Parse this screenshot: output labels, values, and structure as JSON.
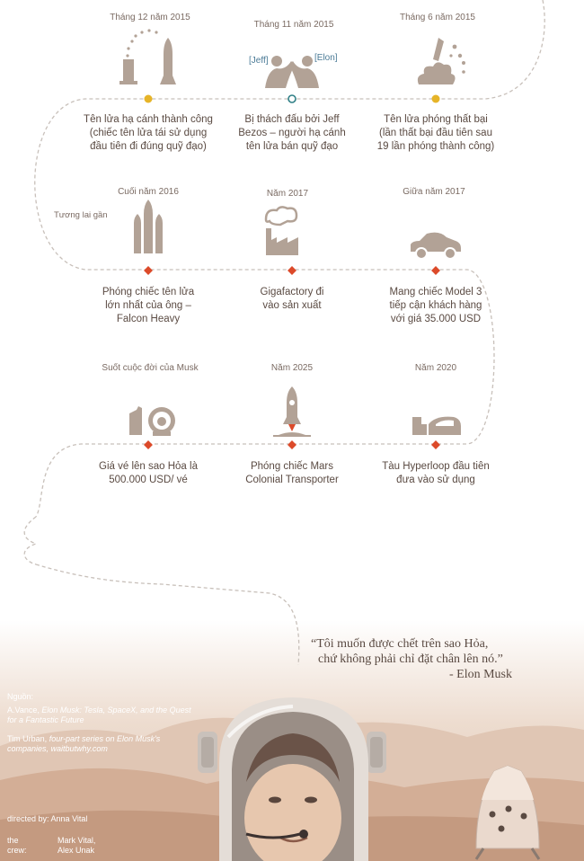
{
  "timeline": {
    "row1": [
      {
        "date": "Tháng 12 năm 2015",
        "caption": [
          "Tên lửa hạ cánh thành công",
          "(chiếc tên lửa tái sử dụng",
          "đầu tiên đi đúng quỹ đạo)"
        ],
        "icon": "rocket-landing-icon",
        "marker": "yellow-dot"
      },
      {
        "date": "Tháng 11 năm 2015",
        "caption": [
          "Bị thách đấu bởi Jeff",
          "Bezos – người hạ cánh",
          "tên lửa bán quỹ đạo"
        ],
        "icon": "arm-wrestling-icon",
        "marker": "ring",
        "left_handle": "[Jeff]",
        "right_handle": "[Elon]"
      },
      {
        "date": "Tháng 6 năm 2015",
        "caption": [
          "Tên lửa phóng thất bại",
          "(lần thất bại đầu tiên sau",
          "19 lần phóng thành công)"
        ],
        "icon": "rocket-explosion-icon",
        "marker": "yellow-dot"
      }
    ],
    "row2": [
      {
        "date": "Cuối năm 2016",
        "caption": [
          "Phóng chiếc tên lửa",
          "lớn nhất của ông –",
          "Falcon Heavy"
        ],
        "icon": "falcon-heavy-icon",
        "marker": "red-diamond"
      },
      {
        "date": "Năm 2017",
        "caption": [
          "Gigafactory đi",
          "vào sản xuất"
        ],
        "icon": "factory-icon",
        "marker": "red-diamond"
      },
      {
        "date": "Giữa năm 2017",
        "caption": [
          "Mang chiếc Model 3",
          "tiếp cận khách hàng",
          "với giá 35.000 USD"
        ],
        "icon": "car-icon",
        "marker": "red-diamond"
      }
    ],
    "row3": [
      {
        "date": "Suốt cuộc đời của Musk",
        "caption": [
          "Giá vé lên sao Hỏa là",
          "500.000 USD/ vé"
        ],
        "icon": "mars-ticket-icon",
        "marker": "red-diamond"
      },
      {
        "date": "Năm 2025",
        "caption": [
          "Phóng chiếc Mars",
          "Colonial Transporter"
        ],
        "icon": "mars-launch-icon",
        "marker": "red-diamond"
      },
      {
        "date": "Năm 2020",
        "caption": [
          "Tàu Hyperloop đầu tiên",
          "đưa vào sử dụng"
        ],
        "icon": "hyperloop-icon",
        "marker": "red-diamond"
      }
    ],
    "near_future_label": "Tương lai gần"
  },
  "quote": {
    "line1": "“Tôi muốn được chết trên sao Hỏa,",
    "line2": "chứ không phải chỉ đặt chân lên nó.”",
    "author": "- Elon Musk"
  },
  "credits": {
    "sources_label": "Nguồn:",
    "source1_author": "A.Vance, ",
    "source1_title": "Elon Musk: Tesla, SpaceX, and the Quest for a Fantastic Future",
    "source2_author": "Tim Urban, ",
    "source2_title": "four-part series on Elon Musk's companies, waitbutwhy.com",
    "directed_label": "directed by:",
    "directed_name": "Anna Vital",
    "crew_label": "the crew:",
    "crew_name1": "Mark Vital,",
    "crew_name2": "Alex Unak"
  },
  "colors": {
    "icon": "#b2a296",
    "path": "#c8c0ba",
    "yellow": "#e6b428",
    "red": "#dc4a2a",
    "ring": "#2f7f86",
    "handle": "#4a7a96",
    "sky_top": "#ffffff",
    "sky_bottom": "#ead7c9",
    "ground": "#c9a38c"
  }
}
